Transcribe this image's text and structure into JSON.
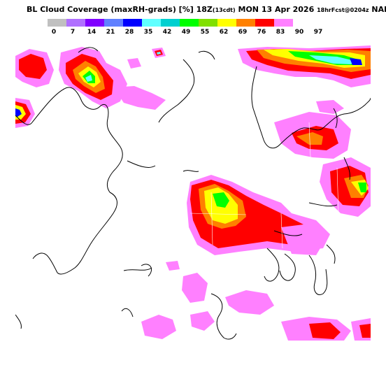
{
  "title": {
    "main": "BL Cloud Coverage (maxRH-grads) [%]",
    "time": "18Z",
    "local_time": "(13cdt)",
    "date": "MON 13 Apr 2026",
    "forecast": "18hrFcst@0204z",
    "model": "NAM"
  },
  "legend": {
    "colors": [
      "#c0c0c0",
      "#b070ff",
      "#8000ff",
      "#6080ff",
      "#0000ff",
      "#60ffff",
      "#00d0d0",
      "#00ff00",
      "#80e000",
      "#ffff00",
      "#ff8000",
      "#ff0000",
      "#ff80ff"
    ],
    "ticks": [
      "0",
      "7",
      "14",
      "21",
      "28",
      "35",
      "42",
      "49",
      "55",
      "62",
      "69",
      "76",
      "83",
      "90",
      "97"
    ]
  },
  "palette": {
    "magenta": "#ff80ff",
    "red": "#ff0000",
    "orange": "#ff8000",
    "yellow": "#ffff00",
    "lime": "#80e000",
    "green": "#00ff00",
    "cyan": "#60ffff",
    "blue": "#0000ff",
    "purple": "#8000ff"
  }
}
